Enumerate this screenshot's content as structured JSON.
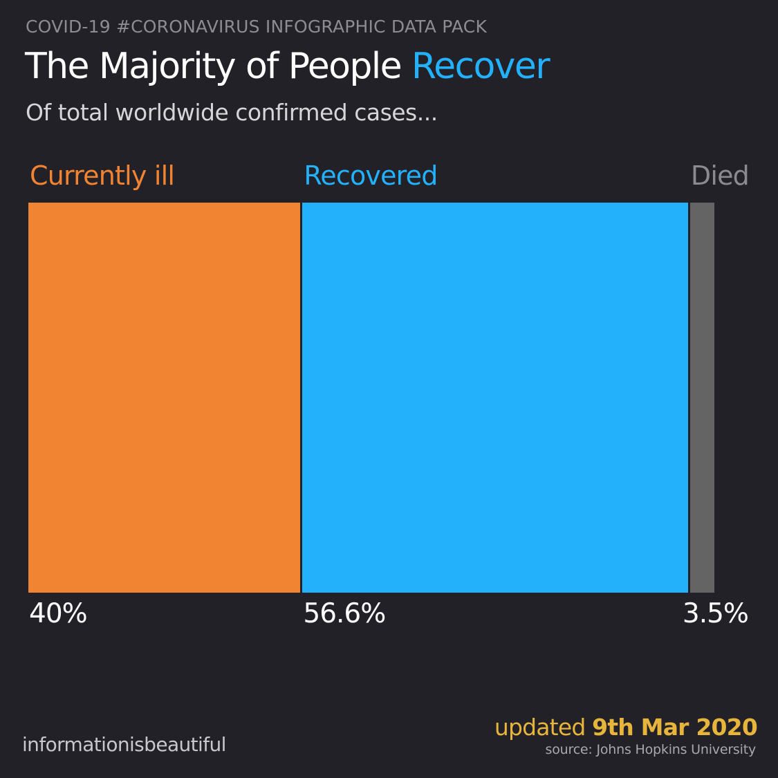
{
  "header": {
    "kicker": "COVID-19 #CORONAVIRUS INFOGRAPHIC DATA PACK",
    "title_main": "The Majority of People ",
    "title_highlight": "Recover",
    "subtitle": "Of total worldwide confirmed cases..."
  },
  "chart_data": {
    "type": "bar",
    "orientation": "stacked-horizontal",
    "categories": [
      "Currently ill",
      "Recovered",
      "Died"
    ],
    "values": [
      40,
      56.6,
      3.5
    ],
    "value_labels": [
      "40%",
      "56.6%",
      "3.5%"
    ],
    "colors": [
      "#f08433",
      "#24b1fb",
      "#646464"
    ],
    "title": "The Majority of People Recover",
    "subtitle": "Of total worldwide confirmed cases...",
    "unit": "%"
  },
  "footer": {
    "brand": "informationisbeautiful",
    "updated_prefix": "updated ",
    "updated_date": "9th Mar 2020",
    "source": "source: Johns Hopkins University"
  },
  "colors": {
    "background": "#222128",
    "accent_blue": "#24b1fb",
    "accent_orange": "#f08433",
    "died_gray": "#646464",
    "date_gold": "#e7b53b"
  }
}
